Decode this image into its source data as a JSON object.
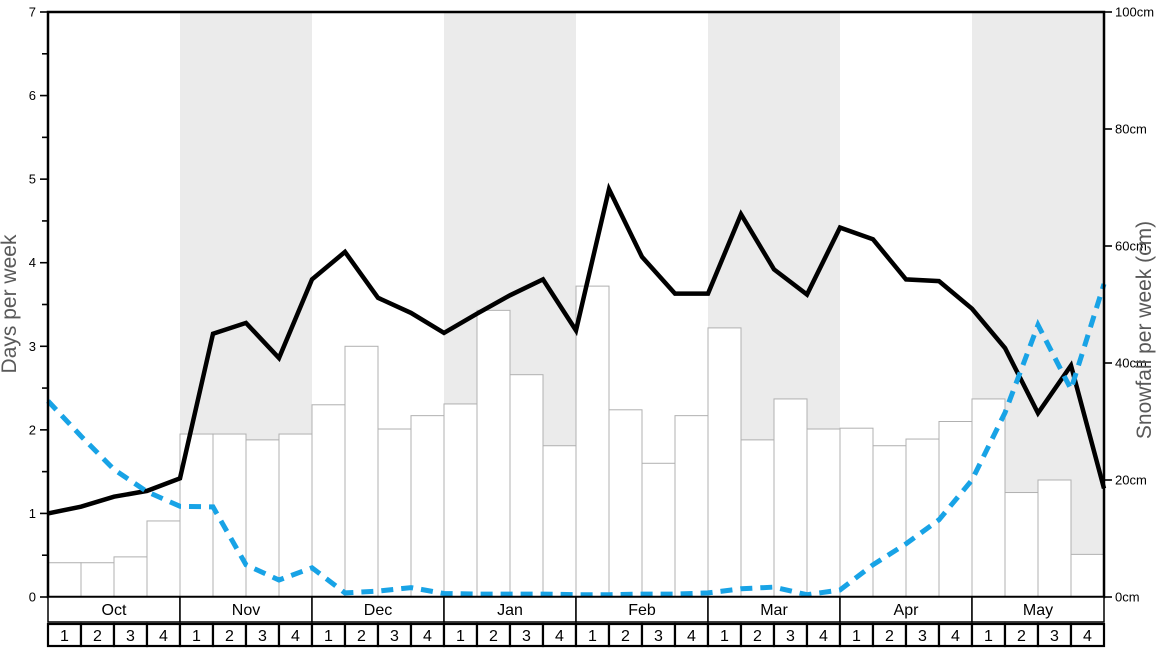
{
  "chart_data": {
    "type": "line+bar",
    "title": "",
    "x_unit": "week index from start of October; line points at week boundaries 0-32, bars span weeks 0-31",
    "months": [
      "Oct",
      "Nov",
      "Dec",
      "Jan",
      "Feb",
      "Mar",
      "Apr",
      "May"
    ],
    "week_labels": [
      "1",
      "2",
      "3",
      "4"
    ],
    "shaded_months": [
      "Nov",
      "Jan",
      "Mar",
      "May"
    ],
    "left_axis": {
      "label": "Days per week",
      "min": 0,
      "max": 7,
      "ticks": [
        0,
        1,
        2,
        3,
        4,
        5,
        6,
        7
      ],
      "minor_step": 0.5
    },
    "right_axis": {
      "label": "Snowfall per week (cm)",
      "min": 0,
      "max": 100,
      "ticks": [
        0,
        20,
        40,
        60,
        80,
        100
      ],
      "tick_suffix": "cm"
    },
    "legend": "none",
    "grid": "off",
    "series": [
      {
        "name": "days-per-week-line",
        "type": "line",
        "axis": "left",
        "color": "#000000",
        "dash": "solid",
        "values": [
          1.0,
          1.08,
          1.2,
          1.27,
          1.42,
          3.15,
          3.28,
          2.86,
          3.8,
          4.13,
          3.58,
          3.4,
          3.16,
          3.39,
          3.61,
          3.8,
          3.19,
          4.88,
          4.07,
          3.63,
          3.63,
          4.58,
          3.92,
          3.62,
          4.42,
          4.28,
          3.8,
          3.78,
          3.45,
          2.98,
          2.2,
          2.77,
          1.3
        ]
      },
      {
        "name": "snowfall-per-week-line",
        "type": "line",
        "axis": "right",
        "color": "#18a3e6",
        "dash": "dashed",
        "values": [
          33.5,
          27.5,
          21.8,
          18.0,
          15.5,
          15.4,
          5.5,
          2.9,
          5.0,
          0.7,
          1.0,
          1.6,
          0.6,
          0.5,
          0.5,
          0.5,
          0.4,
          0.4,
          0.5,
          0.5,
          0.7,
          1.4,
          1.7,
          0.4,
          1.2,
          5.5,
          9.1,
          13.2,
          20.0,
          31.5,
          46.5,
          35.5,
          53.5
        ]
      },
      {
        "name": "days-per-week-bars",
        "type": "bar",
        "axis": "left",
        "fill": "#ffffff",
        "border": "#b0b0b0",
        "values": [
          0.41,
          0.41,
          0.48,
          0.91,
          1.95,
          1.95,
          1.88,
          1.95,
          2.3,
          3.0,
          2.01,
          2.17,
          2.31,
          3.43,
          2.66,
          1.81,
          3.72,
          2.24,
          1.6,
          2.17,
          3.22,
          1.88,
          2.37,
          2.01,
          2.02,
          1.81,
          1.89,
          2.1,
          2.37,
          1.25,
          1.4,
          0.51
        ]
      }
    ],
    "colors": {
      "band": "#ebebeb",
      "plot_border": "#000000",
      "axis_title": "#595959"
    }
  }
}
